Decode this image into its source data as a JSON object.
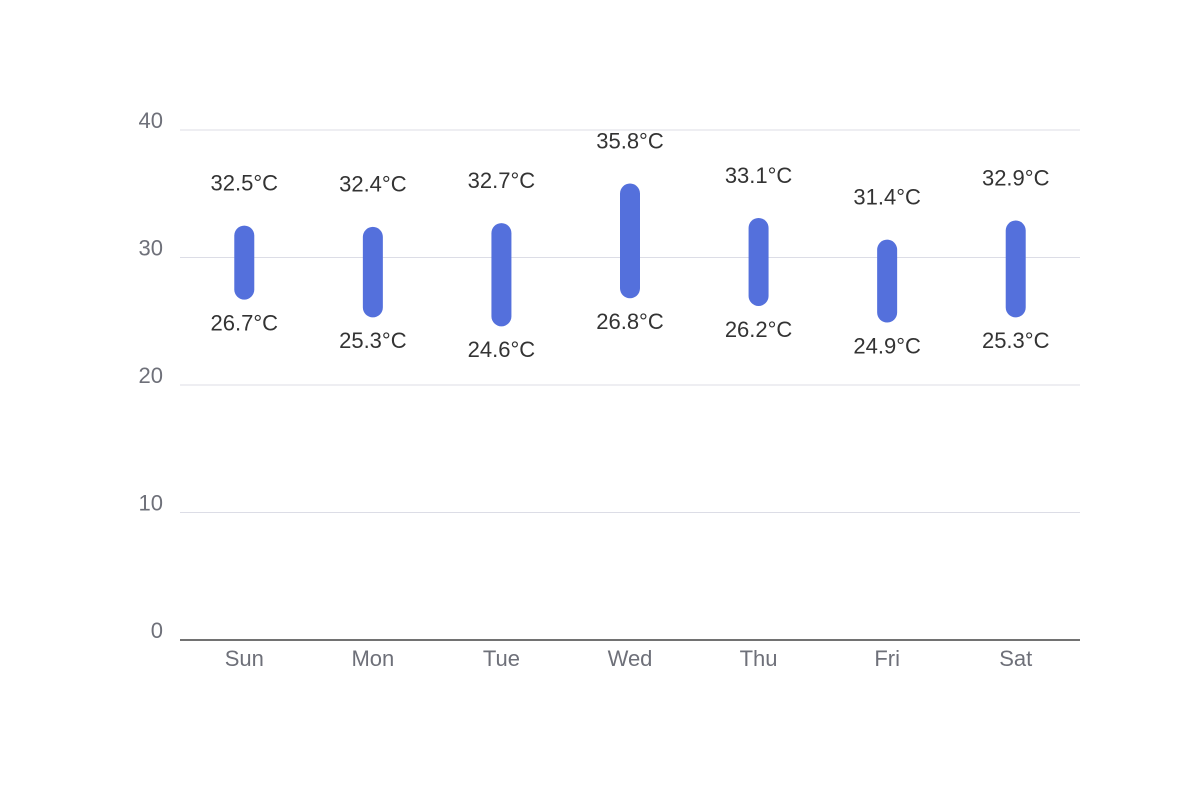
{
  "chart_data": {
    "type": "range-bar",
    "categories": [
      "Sun",
      "Mon",
      "Tue",
      "Wed",
      "Thu",
      "Fri",
      "Sat"
    ],
    "low": {
      "values": [
        26.7,
        25.3,
        24.6,
        26.8,
        26.2,
        24.9,
        25.3
      ],
      "value_labels": [
        "26.7°C",
        "25.3°C",
        "24.6°C",
        "26.8°C",
        "26.2°C",
        "24.9°C",
        "25.3°C"
      ]
    },
    "high": {
      "values": [
        32.5,
        32.4,
        32.7,
        35.8,
        33.1,
        31.4,
        32.9
      ],
      "value_labels": [
        "32.5°C",
        "32.4°C",
        "32.7°C",
        "35.8°C",
        "33.1°C",
        "31.4°C",
        "32.9°C"
      ]
    },
    "color": "#5470dc",
    "ylim": [
      0,
      40
    ],
    "yticks": [
      0,
      10,
      20,
      30,
      40
    ],
    "grid": true
  }
}
